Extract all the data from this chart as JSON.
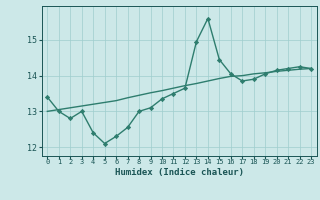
{
  "title": "",
  "xlabel": "Humidex (Indice chaleur)",
  "x_values": [
    0,
    1,
    2,
    3,
    4,
    5,
    6,
    7,
    8,
    9,
    10,
    11,
    12,
    13,
    14,
    15,
    16,
    17,
    18,
    19,
    20,
    21,
    22,
    23
  ],
  "y_main": [
    13.4,
    13.0,
    12.8,
    13.0,
    12.4,
    12.1,
    12.3,
    12.55,
    13.0,
    13.1,
    13.35,
    13.5,
    13.65,
    14.95,
    15.6,
    14.45,
    14.05,
    13.85,
    13.9,
    14.05,
    14.15,
    14.2,
    14.25,
    14.2
  ],
  "y_trend": [
    13.0,
    13.05,
    13.1,
    13.15,
    13.2,
    13.25,
    13.3,
    13.38,
    13.45,
    13.52,
    13.58,
    13.65,
    13.72,
    13.78,
    13.85,
    13.92,
    13.98,
    14.0,
    14.05,
    14.08,
    14.12,
    14.15,
    14.18,
    14.2
  ],
  "ylim": [
    11.75,
    15.95
  ],
  "yticks": [
    12,
    13,
    14,
    15
  ],
  "xticks": [
    0,
    1,
    2,
    3,
    4,
    5,
    6,
    7,
    8,
    9,
    10,
    11,
    12,
    13,
    14,
    15,
    16,
    17,
    18,
    19,
    20,
    21,
    22,
    23
  ],
  "line_color": "#2e7d6e",
  "trend_color": "#2e7d6e",
  "bg_color": "#cce8e8",
  "grid_color": "#9fcece",
  "tick_color": "#1a5555",
  "marker": "D",
  "marker_size": 2.2,
  "line_width": 1.0,
  "xlabel_fontsize": 6.5,
  "xtick_fontsize": 5.0,
  "ytick_fontsize": 6.0
}
